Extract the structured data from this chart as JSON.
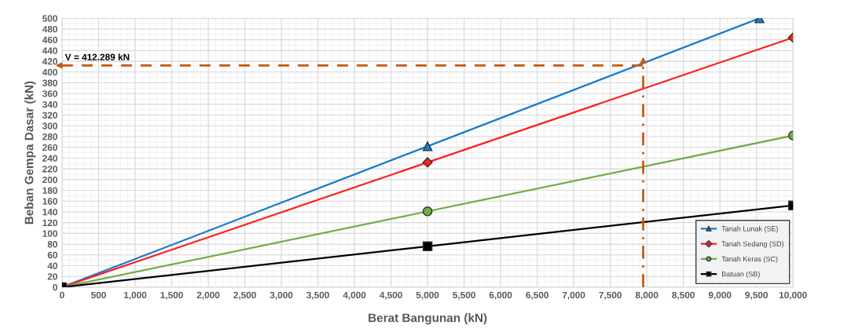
{
  "chart_data": {
    "type": "line",
    "xlabel": "Berat Bangunan (kN)",
    "ylabel": "Beban Gempa Dasar (kN)",
    "series": [
      {
        "name": "Tanah Lunak (SE)",
        "color": "#1a7ccc",
        "marker": "triangle",
        "x": [
          0,
          5000,
          9540
        ],
        "values": [
          0,
          262,
          500
        ]
      },
      {
        "name": "Tanah Sedang (SD)",
        "color": "#ff2020",
        "marker": "diamond",
        "x": [
          0,
          5000,
          10000
        ],
        "values": [
          0,
          232,
          464
        ]
      },
      {
        "name": "Tanah Keras (SC)",
        "color": "#70ad47",
        "marker": "circle",
        "x": [
          0,
          5000,
          10000
        ],
        "values": [
          0,
          141,
          282
        ]
      },
      {
        "name": "Batuan (SB)",
        "color": "#000000",
        "marker": "square",
        "x": [
          0,
          5000,
          10000
        ],
        "values": [
          0,
          76,
          152
        ]
      }
    ],
    "xlim": [
      0,
      10000
    ],
    "xticks": [
      0,
      500,
      {
        "value": 1000,
        "label": "1,000"
      },
      {
        "value": 1500,
        "label": "1,500"
      },
      {
        "value": 2000,
        "label": "2,000"
      },
      {
        "value": 2500,
        "label": "2,500"
      },
      {
        "value": 3000,
        "label": "3,000"
      },
      {
        "value": 3500,
        "label": "3,500"
      },
      {
        "value": 4000,
        "label": "4,000"
      },
      {
        "value": 4500,
        "label": "4,500"
      },
      {
        "value": 5000,
        "label": "5,000"
      },
      {
        "value": 5500,
        "label": "5,500"
      },
      {
        "value": 6000,
        "label": "6,000"
      },
      {
        "value": 6500,
        "label": "6,500"
      },
      {
        "value": 7000,
        "label": "7,000"
      },
      {
        "value": 7500,
        "label": "7,500"
      },
      {
        "value": 8000,
        "label": "8,000"
      },
      {
        "value": 8500,
        "label": "8,500"
      },
      {
        "value": 9000,
        "label": "9,000"
      },
      {
        "value": 9500,
        "label": "9,500"
      },
      {
        "value": 10000,
        "label": "10,000"
      }
    ],
    "ylim": [
      0,
      500
    ],
    "yticks": [
      0,
      20,
      40,
      60,
      80,
      100,
      120,
      140,
      160,
      180,
      200,
      220,
      240,
      260,
      280,
      300,
      320,
      340,
      360,
      380,
      400,
      420,
      440,
      460,
      480,
      500
    ],
    "ref_lines": [
      {
        "axis": "y",
        "value": 412.289,
        "label": "V = 412.289 kN",
        "color": "#c55a11",
        "line_style": "dashed"
      },
      {
        "axis": "x",
        "value": 7950,
        "color": "#c55a11",
        "line_style": "dotted"
      }
    ],
    "grid": true,
    "legend": "bottom right"
  }
}
